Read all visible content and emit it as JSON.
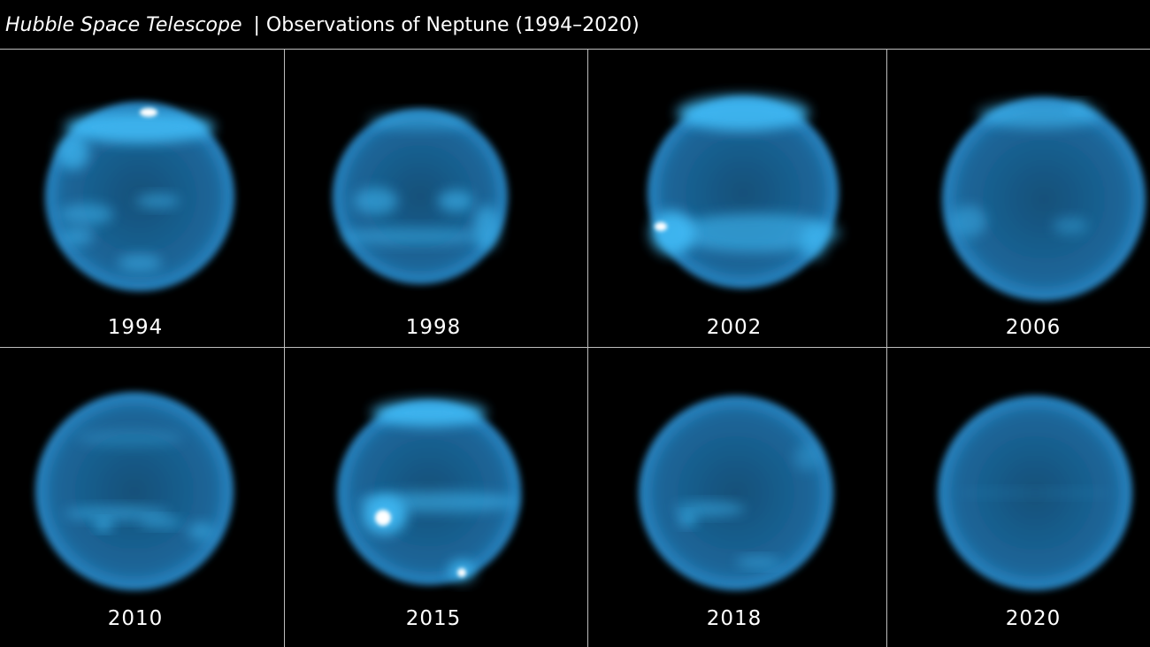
{
  "header": {
    "title_italic": "Hubble Space Telescope",
    "title_rest": "| Observations of Neptune (1994–2020)"
  },
  "panels": [
    {
      "year": "1994"
    },
    {
      "year": "1998"
    },
    {
      "year": "2002"
    },
    {
      "year": "2006"
    },
    {
      "year": "2010"
    },
    {
      "year": "2015"
    },
    {
      "year": "2018"
    },
    {
      "year": "2020"
    }
  ]
}
